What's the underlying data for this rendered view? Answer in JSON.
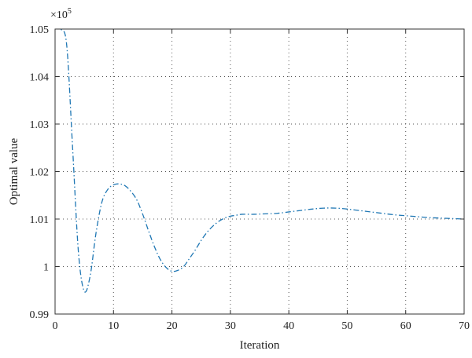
{
  "chart_data": {
    "type": "line",
    "title": "",
    "xlabel": "Iteration",
    "ylabel": "Optimal value",
    "y_multiplier": "×10",
    "y_multiplier_exponent": "5",
    "xlim": [
      0,
      70
    ],
    "ylim": [
      0.99,
      1.05
    ],
    "x_ticks": [
      0,
      10,
      20,
      30,
      40,
      50,
      60,
      70
    ],
    "y_ticks": [
      0.99,
      1,
      1.01,
      1.02,
      1.03,
      1.04,
      1.05
    ],
    "x_tick_labels": [
      "0",
      "10",
      "20",
      "30",
      "40",
      "50",
      "60",
      "70"
    ],
    "y_tick_labels": [
      "0.99",
      "1",
      "1.01",
      "1.02",
      "1.03",
      "1.04",
      "1.05"
    ],
    "grid": true,
    "legend": "none",
    "series": [
      {
        "color": "#1f77b4",
        "line_style": "dash-dot",
        "x": [
          0,
          1,
          2,
          3,
          4,
          5,
          6,
          7,
          8,
          9,
          10,
          11,
          12,
          13,
          14,
          15,
          16,
          17,
          18,
          19,
          20,
          21,
          22,
          23,
          24,
          25,
          26,
          27,
          28,
          29,
          30,
          31,
          32,
          34,
          36,
          38,
          40,
          42,
          44,
          46,
          48,
          50,
          52,
          54,
          56,
          58,
          60,
          62,
          64,
          66,
          68,
          70
        ],
        "y": [
          1.051,
          1.05,
          1.0465,
          1.025,
          1.003,
          0.9948,
          0.998,
          1.007,
          1.0135,
          1.0162,
          1.0172,
          1.0174,
          1.017,
          1.0158,
          1.014,
          1.011,
          1.0075,
          1.0042,
          1.0015,
          0.9998,
          0.999,
          0.9992,
          1.0,
          1.0017,
          1.0035,
          1.0055,
          1.0072,
          1.0085,
          1.0095,
          1.0102,
          1.0106,
          1.0108,
          1.011,
          1.011,
          1.0111,
          1.0112,
          1.0115,
          1.0118,
          1.0121,
          1.0123,
          1.0123,
          1.0121,
          1.0118,
          1.0115,
          1.0112,
          1.0109,
          1.0107,
          1.0105,
          1.0103,
          1.0102,
          1.0101,
          1.01
        ]
      }
    ]
  }
}
